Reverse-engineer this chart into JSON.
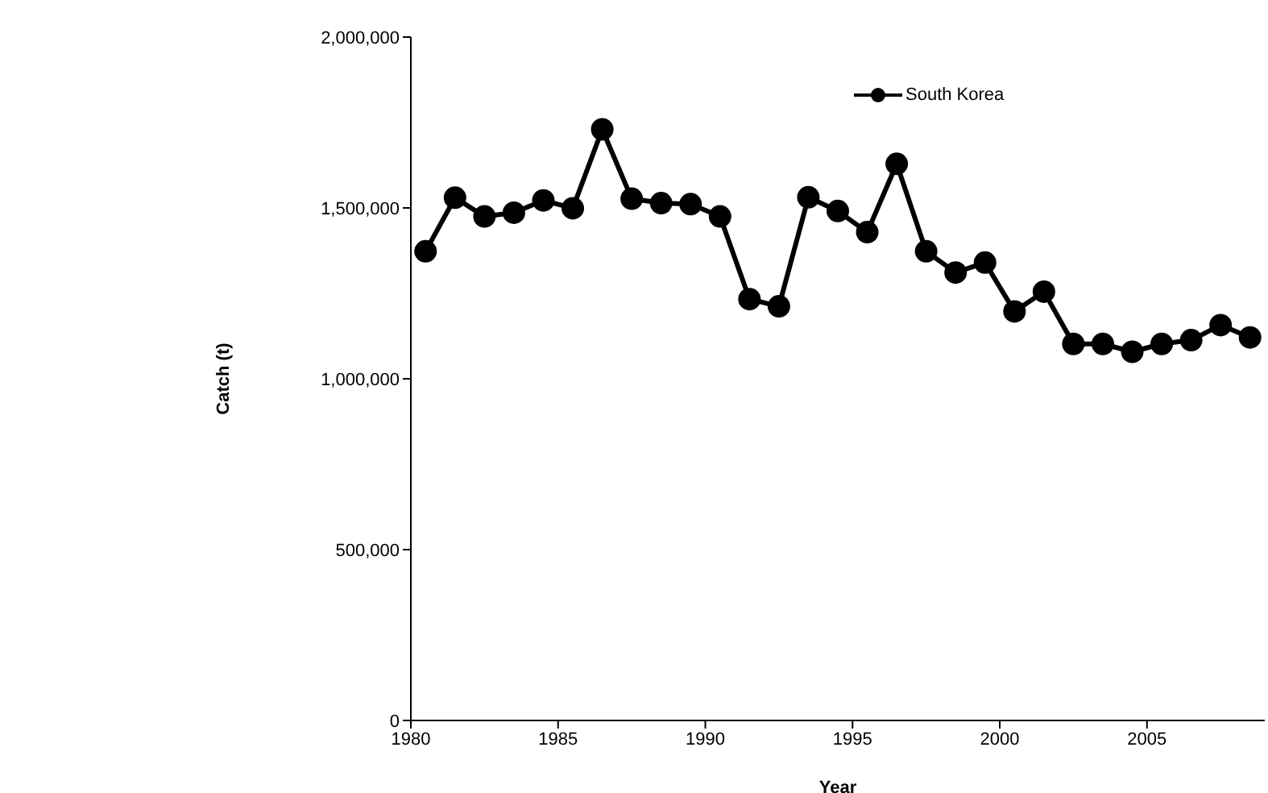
{
  "chart_data": {
    "type": "line",
    "xlabel": "Year",
    "ylabel": "Catch (t)",
    "x": [
      1980.5,
      1981.5,
      1982.5,
      1983.5,
      1984.5,
      1985.5,
      1986.5,
      1987.5,
      1988.5,
      1989.5,
      1990.5,
      1991.5,
      1992.5,
      1993.5,
      1994.5,
      1995.5,
      1996.5,
      1997.5,
      1998.5,
      1999.5,
      2000.5,
      2001.5,
      2002.5,
      2003.5,
      2004.5,
      2005.5,
      2006.5,
      2007.5,
      2008.5
    ],
    "series": [
      {
        "name": "South Korea",
        "color": "#000000",
        "values": [
          1373000,
          1530000,
          1475000,
          1486000,
          1522000,
          1499000,
          1730000,
          1527000,
          1514000,
          1511000,
          1475000,
          1233000,
          1212000,
          1531000,
          1491000,
          1429000,
          1629000,
          1373000,
          1311000,
          1340000,
          1197000,
          1255000,
          1102000,
          1102000,
          1079000,
          1102000,
          1113000,
          1157000,
          1121000
        ]
      }
    ],
    "xlim": [
      1980,
      2009
    ],
    "xticks": [
      1980,
      1985,
      1990,
      1995,
      2000,
      2005
    ],
    "ylim": [
      0,
      2000000
    ],
    "yticks": [
      0,
      {
        "value": 500000,
        "label": "500,000"
      },
      {
        "value": 1000000,
        "label": "1,000,000"
      },
      {
        "value": 1500000,
        "label": "1,500,000"
      },
      {
        "value": 2000000,
        "label": "2,000,000"
      }
    ],
    "grid": false,
    "legend": "top",
    "marker": "circle",
    "line_style": "solid"
  }
}
